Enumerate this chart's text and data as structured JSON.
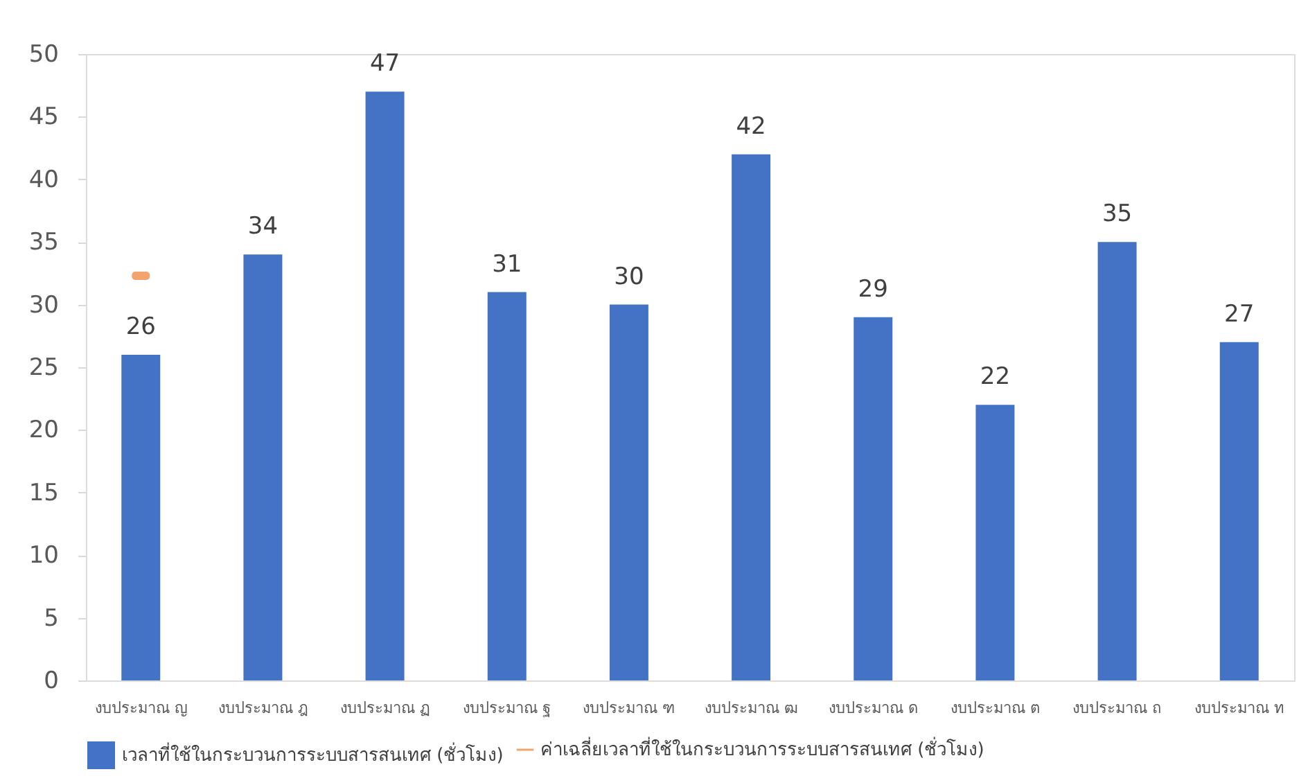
{
  "chart_data": {
    "type": "bar",
    "categories": [
      "งบประมาณ ญ",
      "งบประมาณ ฎ",
      "งบประมาณ ฏ",
      "งบประมาณ ฐ",
      "งบประมาณ ฑ",
      "งบประมาณ ฒ",
      "งบประมาณ ด",
      "งบประมาณ ต",
      "งบประมาณ ถ",
      "งบประมาณ ท"
    ],
    "series": [
      {
        "name": "เวลาที่ใช้ในกระบวนการระบบสารสนเทศ (ชั่วโมง)",
        "type": "bar",
        "color": "#4472c4",
        "values": [
          26,
          34,
          47,
          31,
          30,
          42,
          29,
          22,
          35,
          27
        ],
        "data_labels": true
      },
      {
        "name": "ค่าเฉลี่ยเวลาที่ใช้ในกระบวนการระบบสารสนเทศ (ชั่วโมง)",
        "type": "scatter",
        "color": "#ed7d31",
        "values": [
          32.3,
          null,
          null,
          null,
          null,
          null,
          null,
          null,
          null,
          null
        ]
      }
    ],
    "ylim": [
      0,
      50
    ],
    "yticks": [
      0,
      5,
      10,
      15,
      20,
      25,
      30,
      35,
      40,
      45,
      50
    ],
    "grid": false,
    "legend": "bottom"
  }
}
